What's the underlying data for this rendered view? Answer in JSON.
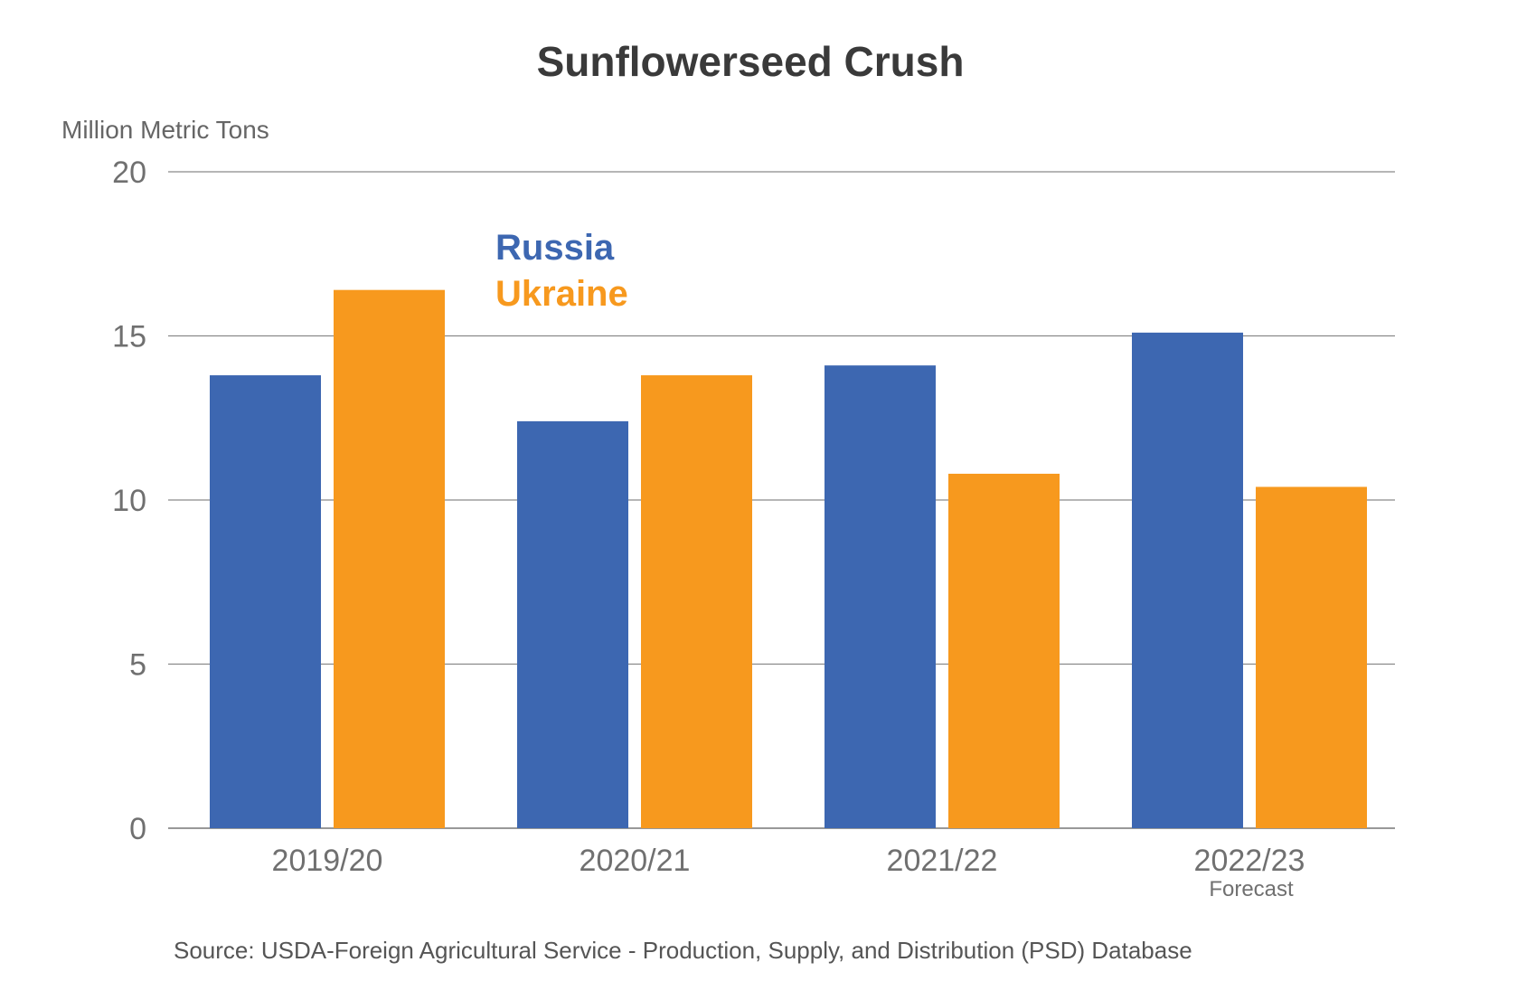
{
  "chart_data": {
    "type": "bar",
    "title": "Sunflowerseed Crush",
    "ylabel": "Million Metric Tons",
    "xlabel": "",
    "categories": [
      "2019/20",
      "2020/21",
      "2021/22",
      "2022/23"
    ],
    "category_notes": [
      "",
      "",
      "",
      "Forecast"
    ],
    "series": [
      {
        "name": "Russia",
        "color": "#3d67b1",
        "values": [
          13.8,
          12.4,
          14.1,
          15.1
        ]
      },
      {
        "name": "Ukraine",
        "color": "#f7991e",
        "values": [
          16.4,
          13.8,
          10.8,
          10.4
        ]
      }
    ],
    "ylim": [
      0,
      20
    ],
    "yticks": [
      0,
      5,
      10,
      15,
      20
    ],
    "grid": true,
    "legend": "upper-left"
  },
  "source": "Source: USDA-Foreign Agricultural Service - Production, Supply, and Distribution (PSD) Database"
}
